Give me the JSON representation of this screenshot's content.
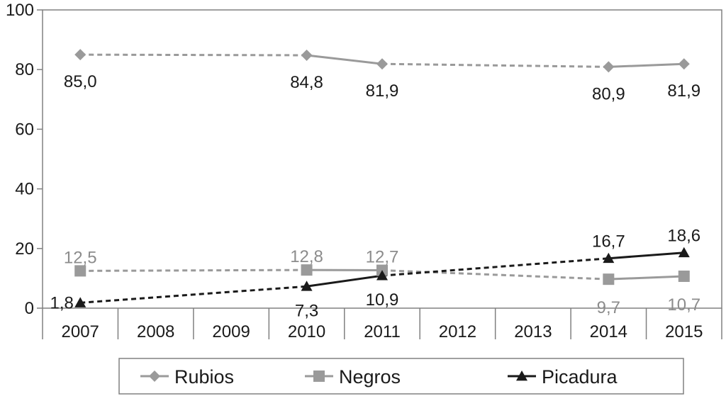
{
  "chart_data": {
    "type": "line",
    "categories": [
      "2007",
      "2008",
      "2009",
      "2010",
      "2011",
      "2012",
      "2013",
      "2014",
      "2015"
    ],
    "ylim": [
      0,
      100
    ],
    "yticks": [
      "0",
      "20",
      "40",
      "60",
      "80",
      "100"
    ],
    "grid": false,
    "legend_position": "bottom",
    "series": [
      {
        "name": "Rubios",
        "color": "#9a9a9a",
        "marker": "diamond",
        "points": [
          {
            "x": "2007",
            "y": 85.0,
            "label": "85,0"
          },
          {
            "x": "2010",
            "y": 84.8,
            "label": "84,8"
          },
          {
            "x": "2011",
            "y": 81.9,
            "label": "81,9"
          },
          {
            "x": "2014",
            "y": 80.9,
            "label": "80,9"
          },
          {
            "x": "2015",
            "y": 81.9,
            "label": "81,9"
          }
        ]
      },
      {
        "name": "Negros",
        "color": "#9a9a9a",
        "marker": "square",
        "points": [
          {
            "x": "2007",
            "y": 12.5,
            "label": "12,5"
          },
          {
            "x": "2010",
            "y": 12.8,
            "label": "12,8"
          },
          {
            "x": "2011",
            "y": 12.7,
            "label": "12,7"
          },
          {
            "x": "2014",
            "y": 9.7,
            "label": "9,7"
          },
          {
            "x": "2015",
            "y": 10.7,
            "label": "10,7"
          }
        ]
      },
      {
        "name": "Picadura",
        "color": "#1a1a1a",
        "marker": "triangle",
        "points": [
          {
            "x": "2007",
            "y": 1.8,
            "label": "1,8"
          },
          {
            "x": "2010",
            "y": 7.3,
            "label": "7,3"
          },
          {
            "x": "2011",
            "y": 10.9,
            "label": "10,9"
          },
          {
            "x": "2014",
            "y": 16.7,
            "label": "16,7"
          },
          {
            "x": "2015",
            "y": 18.6,
            "label": "18,6"
          }
        ]
      }
    ]
  }
}
